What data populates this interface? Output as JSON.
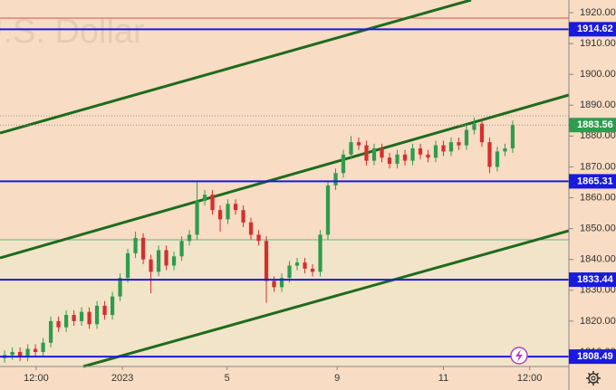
{
  "chart_data": {
    "type": "candlestick",
    "watermark": "U.S. Dollar",
    "open": [
      1808,
      1809,
      1810,
      1808.5,
      1811,
      1810,
      1813,
      1820,
      1818,
      1822,
      1820,
      1823,
      1819,
      1825,
      1822,
      1828,
      1834,
      1842,
      1847,
      1840,
      1836,
      1843,
      1838,
      1841,
      1846,
      1848,
      1859,
      1861,
      1856,
      1853,
      1858,
      1856,
      1852,
      1848,
      1846,
      1833,
      1831,
      1834,
      1838,
      1839,
      1837,
      1836,
      1848,
      1864,
      1868,
      1874,
      1878,
      1877,
      1872,
      1876,
      1873,
      1871,
      1874,
      1872,
      1876,
      1874,
      1873,
      1877,
      1875,
      1878,
      1877,
      1882,
      1884,
      1878,
      1870,
      1875,
      1876
    ],
    "high": [
      1810.5,
      1811.5,
      1811.5,
      1812.5,
      1812.5,
      1814.5,
      1821.5,
      1821.5,
      1823.5,
      1823.5,
      1824.5,
      1824.5,
      1826.5,
      1826.5,
      1829.5,
      1835.5,
      1843.5,
      1849,
      1848.5,
      1841.5,
      1844.5,
      1844.5,
      1842.5,
      1847.5,
      1849.5,
      1865,
      1862.5,
      1862.5,
      1857.5,
      1859.5,
      1859.5,
      1857.5,
      1853.5,
      1849.5,
      1847.5,
      1834.5,
      1835.5,
      1839.5,
      1840.5,
      1840.5,
      1838.5,
      1849.5,
      1865.5,
      1869.5,
      1875.5,
      1880,
      1879.5,
      1878.5,
      1877.5,
      1877.5,
      1874.5,
      1875.5,
      1875.5,
      1877.5,
      1877.5,
      1875.5,
      1878.5,
      1878.5,
      1879.5,
      1879.5,
      1883.5,
      1886,
      1885.5,
      1879.5,
      1876.5,
      1877.5,
      1885
    ],
    "low": [
      1806.5,
      1807.5,
      1807,
      1807,
      1808.5,
      1808.5,
      1811.5,
      1816.5,
      1816.5,
      1818.5,
      1818.5,
      1817.5,
      1817.5,
      1820.5,
      1820.5,
      1826.5,
      1832.5,
      1840.5,
      1838.5,
      1829,
      1834.5,
      1836.5,
      1836.5,
      1839.5,
      1844.5,
      1846.5,
      1857.5,
      1854.5,
      1849,
      1851.5,
      1854.5,
      1850.5,
      1846.5,
      1844.5,
      1826,
      1829.5,
      1829.5,
      1832.5,
      1836.5,
      1835.5,
      1834.5,
      1834.5,
      1846.5,
      1862.5,
      1866.5,
      1872.5,
      1875.5,
      1870.5,
      1870.5,
      1871.5,
      1869.5,
      1869.5,
      1870.5,
      1870.5,
      1872.5,
      1871.5,
      1871.5,
      1873.5,
      1873.5,
      1875.5,
      1875.5,
      1880.5,
      1876.5,
      1868,
      1868.5,
      1873.5,
      1874.5
    ],
    "close": [
      1809,
      1810,
      1808.5,
      1811,
      1810,
      1813,
      1820,
      1818,
      1822,
      1820,
      1823,
      1819,
      1825,
      1822,
      1828,
      1834,
      1842,
      1847,
      1840,
      1836,
      1843,
      1838,
      1841,
      1846,
      1848,
      1859,
      1861,
      1856,
      1853,
      1858,
      1856,
      1852,
      1848,
      1846,
      1833,
      1831,
      1834,
      1838,
      1839,
      1837,
      1836,
      1848,
      1864,
      1868,
      1874,
      1878,
      1877,
      1872,
      1876,
      1873,
      1871,
      1874,
      1872,
      1876,
      1874,
      1873,
      1877,
      1875,
      1878,
      1877,
      1882,
      1884,
      1878,
      1870,
      1875,
      1876,
      1883.56
    ],
    "up_color": "#2e9c4e",
    "down_color": "#d32f2f",
    "xlim": [
      -0.6,
      73.3
    ],
    "xticks": [
      {
        "value": 4.1,
        "label": "12:00"
      },
      {
        "value": 15.3,
        "label": "2023"
      },
      {
        "value": 28.9,
        "label": "5"
      },
      {
        "value": 43.2,
        "label": "9"
      },
      {
        "value": 57,
        "label": "11"
      },
      {
        "value": 68.2,
        "label": "12:00"
      }
    ],
    "ylim": [
      1805.3,
      1924.1
    ],
    "yticks": [
      {
        "value": 1810,
        "label": "1810.00"
      },
      {
        "value": 1820,
        "label": "1820.00"
      },
      {
        "value": 1830,
        "label": "1830.00"
      },
      {
        "value": 1840,
        "label": "1840.00"
      },
      {
        "value": 1850,
        "label": "1850.00"
      },
      {
        "value": 1860,
        "label": "1860.00"
      },
      {
        "value": 1870,
        "label": "1870.00"
      },
      {
        "value": 1880,
        "label": "1880.00"
      },
      {
        "value": 1890,
        "label": "1890.00"
      },
      {
        "value": 1900,
        "label": "1900.00"
      },
      {
        "value": 1910,
        "label": "1910.00"
      },
      {
        "value": 1920,
        "label": "1920.00"
      }
    ],
    "levels": [
      1914.62,
      1865.31,
      1833.44,
      1808.49
    ],
    "level_color": "#1a1adb",
    "last_price": 1883.56,
    "last_price_color": "#2e9c4e"
  }
}
